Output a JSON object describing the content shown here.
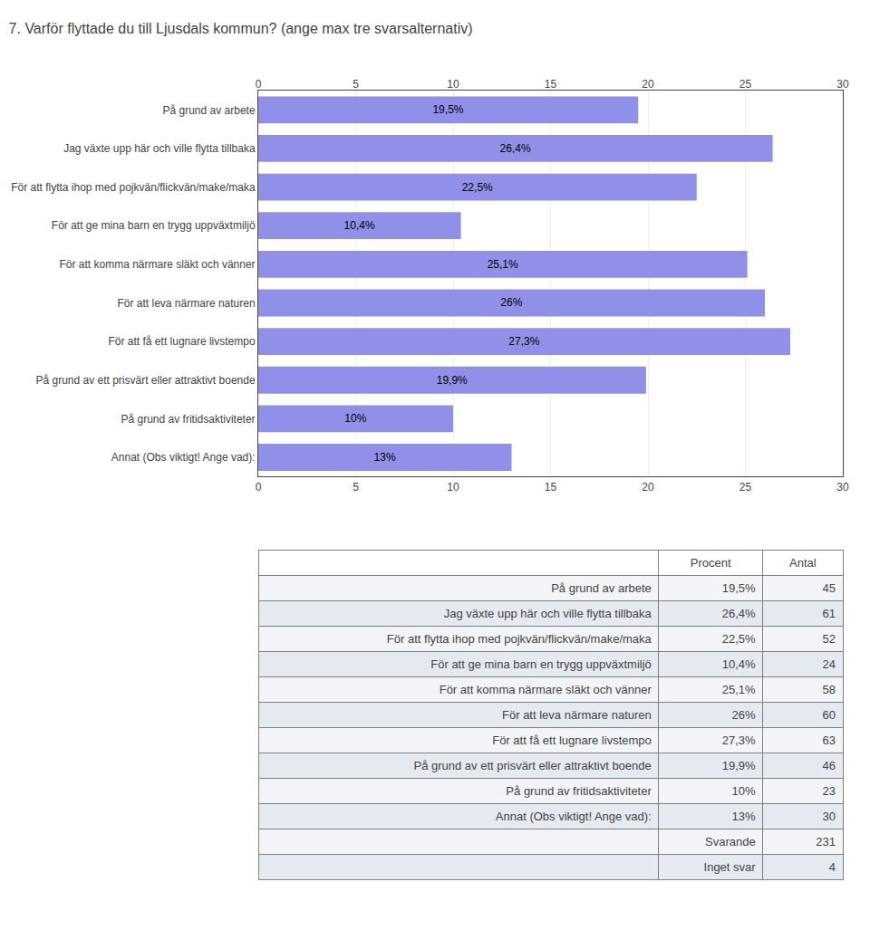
{
  "chart_data": [
    {
      "type": "bar",
      "title": "7. Varför flyttade du till Ljusdals kommun? (ange max tre svarsalternativ)",
      "orientation": "horizontal",
      "categories": [
        "På grund av arbete",
        "Jag växte upp här och ville flytta tillbaka",
        "För att flytta ihop med pojkvän/flickvän/make/maka",
        "För att ge mina barn en trygg uppväxtmiljö",
        "För att komma närmare släkt och vänner",
        "För att leva närmare naturen",
        "För att få ett lugnare livstempo",
        "På grund av ett prisvärt eller attraktivt boende",
        "På grund av fritidsaktiviteter",
        "Annat (Obs viktigt! Ange vad):"
      ],
      "values": [
        19.5,
        26.4,
        22.5,
        10.4,
        25.1,
        26.0,
        27.3,
        19.9,
        10.0,
        13.0
      ],
      "value_labels": [
        "19,5%",
        "26,4%",
        "22,5%",
        "10,4%",
        "25,1%",
        "26%",
        "27,3%",
        "19,9%",
        "10%",
        "13%"
      ],
      "data_labels": true,
      "color": "#9090E8",
      "xlim": [
        0,
        30
      ],
      "xticks": [
        0,
        5,
        10,
        15,
        20,
        25,
        30
      ],
      "grid": true
    },
    {
      "type": "table",
      "columns": [
        "Procent",
        "Antal"
      ],
      "categories": [
        "På grund av arbete",
        "Jag växte upp här och ville flytta tillbaka",
        "För att flytta ihop med pojkvän/flickvän/make/maka",
        "För att ge mina barn en trygg uppväxtmiljö",
        "För att komma närmare släkt och vänner",
        "För att leva närmare naturen",
        "För att få ett lugnare livstempo",
        "På grund av ett prisvärt eller attraktivt boende",
        "På grund av fritidsaktiviteter",
        "Annat (Obs viktigt! Ange vad):"
      ],
      "values": [
        19.5,
        26.4,
        22.5,
        10.4,
        25.1,
        26.0,
        27.3,
        19.9,
        10.0,
        13.0
      ],
      "value_labels": [
        "19,5%",
        "26,4%",
        "22,5%",
        "10,4%",
        "25,1%",
        "26%",
        "27,3%",
        "19,9%",
        "10%",
        "13%"
      ],
      "counts": [
        45,
        61,
        52,
        24,
        58,
        60,
        63,
        46,
        23,
        30
      ],
      "totals": [
        {
          "name": "Svarande",
          "value": 231
        },
        {
          "name": "Inget svar",
          "value": 4
        }
      ]
    }
  ]
}
